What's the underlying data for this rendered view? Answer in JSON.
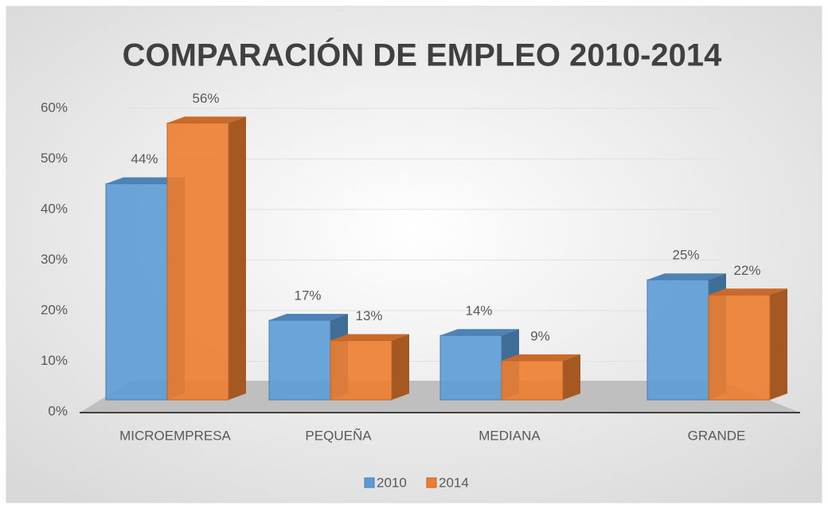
{
  "chart_data": {
    "type": "bar3d",
    "title": "COMPARACIÓN DE EMPLEO 2010-2014",
    "categories": [
      "MICROEMPRESA",
      "PEQUEÑA",
      "MEDIANA",
      "GRANDE"
    ],
    "series": [
      {
        "name": "2010",
        "color": "#5b9bd5",
        "values": [
          44,
          17,
          14,
          25
        ],
        "value_labels": [
          "44%",
          "17%",
          "14%",
          "25%"
        ]
      },
      {
        "name": "2014",
        "color": "#ed7d31",
        "values": [
          56,
          13,
          9,
          22
        ],
        "value_labels": [
          "56%",
          "13%",
          "9%",
          "22%"
        ]
      }
    ],
    "ylim": [
      0,
      60
    ],
    "yticks": [
      {
        "value": 0,
        "label": "0%"
      },
      {
        "value": 10,
        "label": "10%"
      },
      {
        "value": 20,
        "label": "20%"
      },
      {
        "value": 30,
        "label": "30%"
      },
      {
        "value": 40,
        "label": "40%"
      },
      {
        "value": 50,
        "label": "50%"
      },
      {
        "value": 60,
        "label": "60%"
      }
    ],
    "grid": true,
    "legend": "bottom"
  }
}
